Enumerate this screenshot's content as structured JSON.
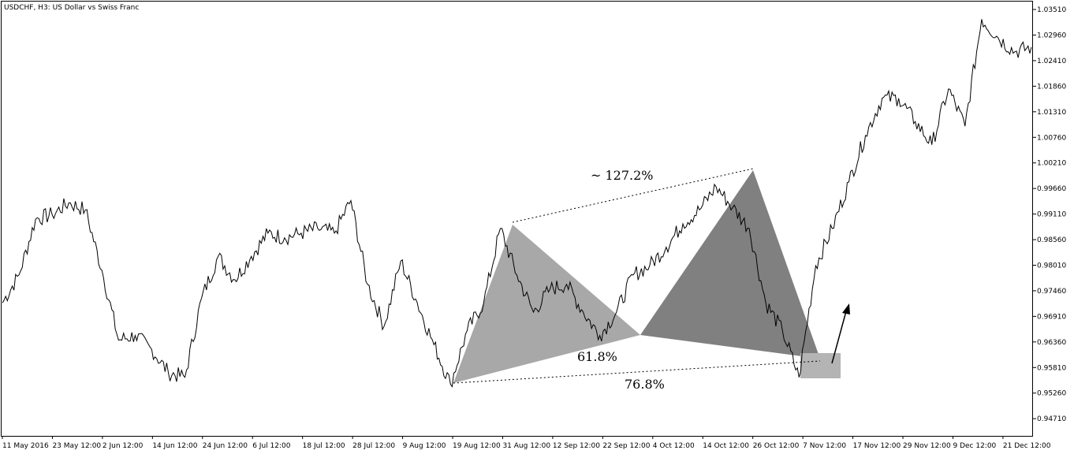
{
  "title": "USDCHF, H3:  US Dollar vs Swiss Franc",
  "chart_data": {
    "type": "line",
    "title": "USDCHF, H3:  US Dollar vs Swiss Franc",
    "symbol": "USDCHF",
    "timeframe": "H3",
    "description": "US Dollar vs Swiss Franc",
    "xlabel": "",
    "ylabel": "",
    "ylim": [
      0.9434,
      1.0368
    ],
    "y_ticks": [
      "1.03510",
      "1.02960",
      "1.02410",
      "1.01860",
      "1.01310",
      "1.00760",
      "1.00210",
      "0.99660",
      "0.99110",
      "0.98560",
      "0.98010",
      "0.97460",
      "0.96910",
      "0.96360",
      "0.95810",
      "0.95260",
      "0.94710"
    ],
    "x_ticks": [
      "11 May 2016",
      "23 May 12:00",
      "2 Jun 12:00",
      "14 Jun 12:00",
      "24 Jun 12:00",
      "6 Jul 12:00",
      "18 Jul 12:00",
      "28 Jul 12:00",
      "9 Aug 12:00",
      "19 Aug 12:00",
      "31 Aug 12:00",
      "12 Sep 12:00",
      "22 Sep 12:00",
      "4 Oct 12:00",
      "14 Oct 12:00",
      "26 Oct 12:00",
      "7 Nov 12:00",
      "17 Nov 12:00",
      "29 Nov 12:00",
      "9 Dec 12:00",
      "21 Dec 12:00"
    ],
    "grid": false,
    "colors": {
      "line": "#000000",
      "background": "#ffffff",
      "xa_triangle": "#a8a8a8",
      "bd_triangle": "#808080",
      "zone": "#b4b4b4"
    },
    "series": [
      {
        "x": [
          "11 May 2016",
          "15 May",
          "19 May",
          "23 May",
          "27 May",
          "31 May",
          "2 Jun",
          "6 Jun",
          "10 Jun",
          "14 Jun",
          "18 Jun",
          "22 Jun",
          "24 Jun",
          "28 Jun",
          "2 Jul",
          "6 Jul",
          "10 Jul",
          "14 Jul",
          "18 Jul",
          "22 Jul",
          "26 Jul",
          "28 Jul",
          "1 Aug",
          "5 Aug",
          "9 Aug",
          "13 Aug",
          "16 Aug",
          "19 Aug",
          "23 Aug",
          "27 Aug",
          "31 Aug",
          "2 Sep",
          "6 Sep",
          "10 Sep",
          "14 Sep",
          "18 Sep",
          "22 Sep",
          "26 Sep",
          "30 Sep",
          "4 Oct",
          "8 Oct",
          "12 Oct",
          "16 Oct",
          "20 Oct",
          "24 Oct",
          "26 Oct",
          "30 Oct",
          "3 Nov",
          "7 Nov",
          "9 Nov",
          "11 Nov",
          "15 Nov",
          "19 Nov",
          "23 Nov",
          "27 Nov",
          "1 Dec",
          "5 Dec",
          "9 Dec",
          "13 Dec",
          "15 Dec",
          "19 Dec",
          "23 Dec",
          "27 Dec"
        ],
        "values": [
          0.972,
          0.978,
          0.99,
          0.991,
          0.9935,
          0.992,
          0.979,
          0.964,
          0.965,
          0.962,
          0.957,
          0.956,
          0.973,
          0.982,
          0.977,
          0.982,
          0.987,
          0.986,
          0.987,
          0.988,
          0.987,
          0.994,
          0.976,
          0.967,
          0.981,
          0.972,
          0.963,
          0.9545,
          0.966,
          0.972,
          0.988,
          0.978,
          0.97,
          0.975,
          0.976,
          0.97,
          0.965,
          0.97,
          0.978,
          0.98,
          0.984,
          0.989,
          0.992,
          0.997,
          0.9925,
          0.988,
          0.972,
          0.966,
          0.956,
          0.98,
          0.988,
          0.998,
          1.008,
          1.016,
          1.016,
          1.011,
          1.006,
          1.018,
          1.01,
          1.033,
          1.029,
          1.026,
          1.027
        ]
      }
    ],
    "annotations": [
      "~ 127.2%",
      "61.8%",
      "76.8%"
    ]
  }
}
